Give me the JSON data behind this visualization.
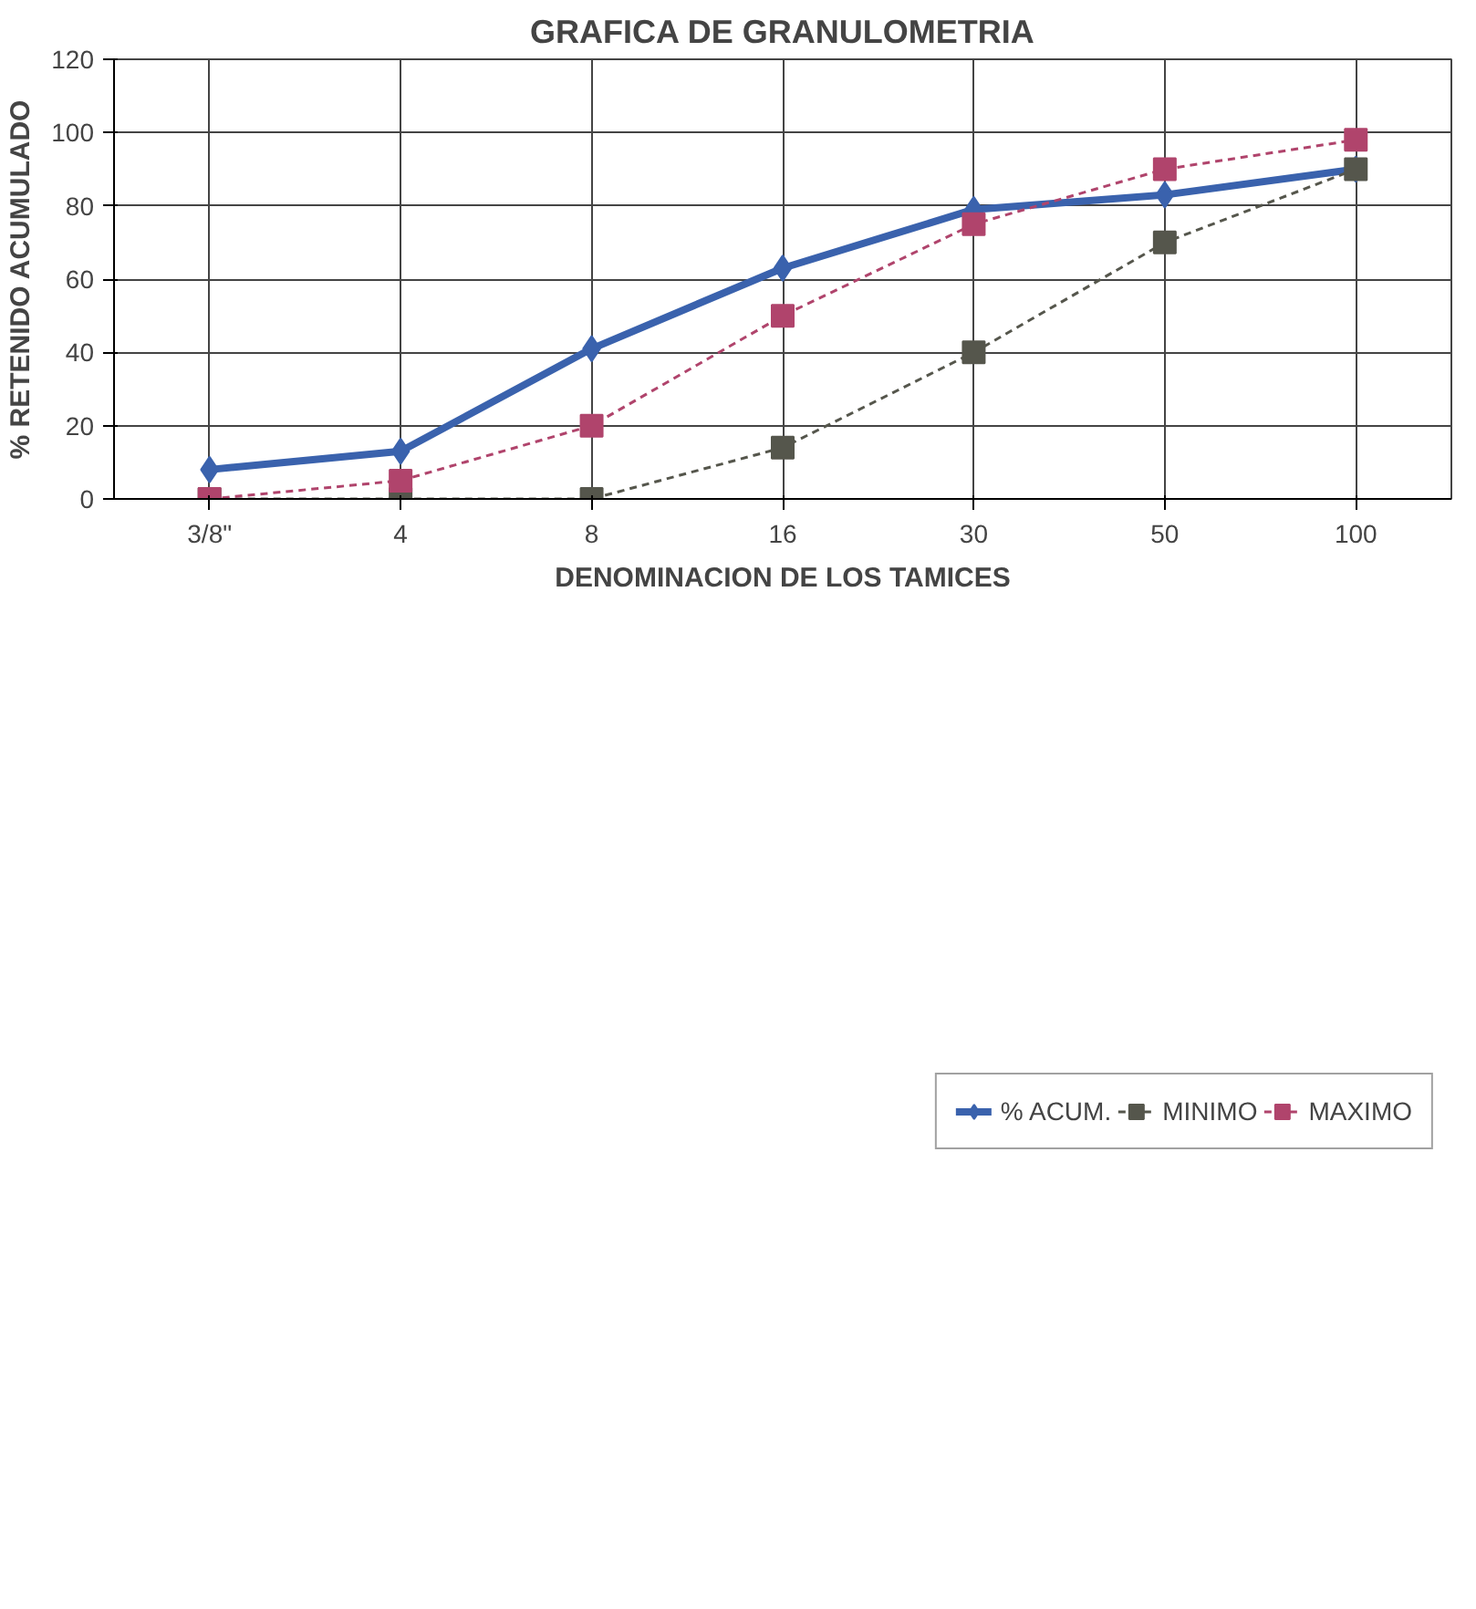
{
  "chart_data": {
    "type": "line",
    "title": "GRAFICA DE GRANULOMETRIA",
    "xlabel": "DENOMINACION DE LOS TAMICES",
    "ylabel": "% RETENIDO ACUMULADO",
    "categories": [
      "3/8\"",
      "4",
      "8",
      "16",
      "30",
      "50",
      "100"
    ],
    "ylim": [
      0,
      120
    ],
    "yticks": [
      0,
      20,
      40,
      60,
      80,
      100,
      120
    ],
    "grid": true,
    "legend": "bottom",
    "series": [
      {
        "name": "% ACUM.",
        "color": "#3a62ad",
        "values": [
          8,
          13,
          41,
          63,
          79,
          83,
          90
        ],
        "marker": "diamond",
        "line_style": "solid"
      },
      {
        "name": "MINIMO",
        "color": "#55564c",
        "values": [
          0,
          0,
          0,
          14,
          40,
          70,
          90
        ],
        "marker": "square",
        "line_style": "dashed"
      },
      {
        "name": "MAXIMO",
        "color": "#b0446c",
        "values": [
          0,
          5,
          20,
          50,
          75,
          90,
          98
        ],
        "marker": "square",
        "line_style": "dashed"
      }
    ]
  }
}
